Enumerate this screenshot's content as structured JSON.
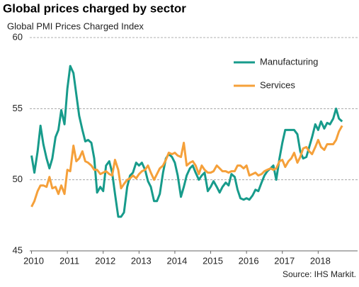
{
  "chart_data": {
    "type": "line",
    "title": "Global prices charged by sector",
    "subtitle": "Global  PMI Prices Charged Index",
    "source": "Source: IHS Markit.",
    "x": [
      2010,
      2010.08,
      2010.17,
      2010.25,
      2010.33,
      2010.42,
      2010.5,
      2010.58,
      2010.67,
      2010.75,
      2010.83,
      2010.92,
      2011,
      2011.08,
      2011.17,
      2011.25,
      2011.33,
      2011.42,
      2011.5,
      2011.58,
      2011.67,
      2011.75,
      2011.83,
      2011.92,
      2012,
      2012.08,
      2012.17,
      2012.25,
      2012.33,
      2012.42,
      2012.5,
      2012.58,
      2012.67,
      2012.75,
      2012.83,
      2012.92,
      2013,
      2013.08,
      2013.17,
      2013.25,
      2013.33,
      2013.42,
      2013.5,
      2013.58,
      2013.67,
      2013.75,
      2013.83,
      2013.92,
      2014,
      2014.08,
      2014.17,
      2014.25,
      2014.33,
      2014.42,
      2014.5,
      2014.58,
      2014.67,
      2014.75,
      2014.83,
      2014.92,
      2015,
      2015.08,
      2015.17,
      2015.25,
      2015.33,
      2015.42,
      2015.5,
      2015.58,
      2015.67,
      2015.75,
      2015.83,
      2015.92,
      2016,
      2016.08,
      2016.17,
      2016.25,
      2016.33,
      2016.42,
      2016.5,
      2016.58,
      2016.67,
      2016.75,
      2016.83,
      2016.92,
      2017,
      2017.08,
      2017.17,
      2017.25,
      2017.33,
      2017.42,
      2017.5,
      2017.58,
      2017.67,
      2017.75,
      2017.83,
      2017.92,
      2018,
      2018.08,
      2018.17,
      2018.25,
      2018.33,
      2018.42,
      2018.5,
      2018.58,
      2018.67
    ],
    "series": [
      {
        "name": "Manufacturing",
        "color": "#179b8b",
        "values": [
          51.7,
          50.5,
          52.0,
          53.8,
          52.5,
          51.5,
          50.8,
          51.5,
          53.0,
          53.5,
          54.9,
          53.9,
          56.4,
          58.0,
          57.5,
          56.0,
          54.5,
          53.5,
          52.7,
          52.8,
          52.6,
          51.5,
          49.1,
          49.5,
          49.2,
          51.0,
          51.3,
          50.5,
          49.0,
          47.4,
          47.4,
          47.7,
          49.5,
          50.3,
          50.5,
          51.2,
          51.0,
          51.2,
          50.7,
          49.9,
          49.5,
          48.5,
          48.5,
          49.0,
          50.5,
          51.5,
          51.8,
          51.6,
          51.2,
          50.3,
          48.8,
          49.5,
          50.3,
          50.8,
          51.0,
          50.5,
          50.0,
          50.3,
          50.5,
          49.2,
          49.5,
          49.9,
          49.5,
          49.1,
          49.5,
          49.8,
          49.6,
          50.4,
          50.2,
          49.3,
          48.7,
          48.6,
          48.7,
          48.6,
          48.9,
          49.3,
          49.2,
          49.8,
          50.3,
          50.6,
          50.8,
          51.0,
          50.0,
          51.5,
          52.6,
          53.5,
          53.5,
          53.5,
          53.5,
          53.2,
          52.0,
          51.5,
          51.6,
          52.3,
          53.0,
          53.9,
          53.5,
          54.1,
          53.6,
          54.0,
          53.9,
          54.3,
          55.0,
          54.3,
          54.1
        ]
      },
      {
        "name": "Services",
        "color": "#f5a03a",
        "values": [
          48.1,
          48.5,
          49.2,
          49.6,
          49.6,
          49.5,
          50.2,
          49.4,
          49.5,
          49.0,
          49.6,
          49.0,
          50.7,
          50.6,
          52.4,
          51.3,
          51.5,
          52.0,
          51.3,
          51.2,
          51.0,
          50.7,
          50.7,
          50.4,
          50.5,
          50.6,
          50.4,
          50.3,
          51.4,
          50.7,
          49.4,
          49.7,
          50.0,
          50.1,
          50.3,
          50.1,
          50.4,
          50.6,
          50.7,
          51.0,
          50.5,
          50.0,
          50.4,
          50.8,
          51.0,
          51.4,
          51.9,
          51.8,
          51.9,
          51.7,
          51.6,
          52.6,
          51.0,
          51.2,
          51.3,
          51.0,
          50.4,
          51.0,
          50.7,
          50.5,
          50.5,
          50.6,
          51.0,
          50.8,
          50.6,
          50.6,
          50.5,
          50.6,
          50.6,
          51.0,
          51.0,
          50.8,
          51.0,
          50.3,
          50.4,
          50.5,
          50.3,
          50.4,
          50.6,
          50.7,
          50.8,
          50.7,
          50.8,
          51.3,
          51.4,
          50.9,
          51.3,
          51.5,
          51.9,
          51.2,
          51.6,
          52.2,
          52.3,
          52.0,
          51.8,
          52.3,
          52.8,
          52.3,
          52.1,
          52.5,
          52.5,
          52.5,
          52.8,
          53.4,
          53.8
        ]
      }
    ],
    "xlim": [
      2009.95,
      2019.1
    ],
    "xticks": [
      2010,
      2011,
      2012,
      2013,
      2014,
      2015,
      2016,
      2017,
      2018
    ],
    "ylim": [
      45,
      60
    ],
    "yticks": [
      45,
      50,
      55,
      60
    ],
    "grid": true,
    "legend": "top-right"
  }
}
